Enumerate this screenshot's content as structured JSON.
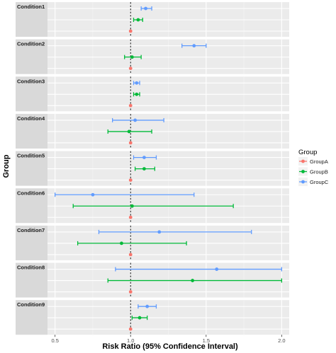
{
  "chart_data": {
    "type": "forest",
    "xlabel": "Risk Ratio (95% Confidence Interval)",
    "ylabel": "Group",
    "xlim": [
      0.45,
      2.05
    ],
    "x_ticks": [
      0.5,
      1.0,
      1.5,
      2.0
    ],
    "x_tick_labels": [
      "0.5",
      "1.0",
      "1.5",
      "2.0"
    ],
    "reference_line": 1.0,
    "grid": true,
    "legend_position": "right",
    "legend": {
      "title": "Group",
      "items": [
        {
          "name": "GroupA",
          "color": "#F8766D"
        },
        {
          "name": "GroupB",
          "color": "#00BA38"
        },
        {
          "name": "GroupC",
          "color": "#619CFF"
        }
      ]
    },
    "panels": [
      {
        "label": "Condition1",
        "groups": [
          {
            "name": "GroupC",
            "estimate": 1.1,
            "lower": 1.07,
            "upper": 1.14
          },
          {
            "name": "GroupB",
            "estimate": 1.05,
            "lower": 1.02,
            "upper": 1.08
          },
          {
            "name": "GroupA",
            "estimate": 1.0,
            "lower": 1.0,
            "upper": 1.0
          }
        ]
      },
      {
        "label": "Condition2",
        "groups": [
          {
            "name": "GroupC",
            "estimate": 1.42,
            "lower": 1.34,
            "upper": 1.5
          },
          {
            "name": "GroupB",
            "estimate": 1.01,
            "lower": 0.96,
            "upper": 1.07
          },
          {
            "name": "GroupA",
            "estimate": 1.0,
            "lower": 1.0,
            "upper": 1.0
          }
        ]
      },
      {
        "label": "Condition3",
        "groups": [
          {
            "name": "GroupC",
            "estimate": 1.04,
            "lower": 1.02,
            "upper": 1.06
          },
          {
            "name": "GroupB",
            "estimate": 1.04,
            "lower": 1.02,
            "upper": 1.06
          },
          {
            "name": "GroupA",
            "estimate": 1.0,
            "lower": 1.0,
            "upper": 1.0
          }
        ]
      },
      {
        "label": "Condition4",
        "groups": [
          {
            "name": "GroupC",
            "estimate": 1.03,
            "lower": 0.88,
            "upper": 1.22
          },
          {
            "name": "GroupB",
            "estimate": 0.99,
            "lower": 0.85,
            "upper": 1.14
          },
          {
            "name": "GroupA",
            "estimate": 1.0,
            "lower": 1.0,
            "upper": 1.0
          }
        ]
      },
      {
        "label": "Condition5",
        "groups": [
          {
            "name": "GroupC",
            "estimate": 1.09,
            "lower": 1.02,
            "upper": 1.17
          },
          {
            "name": "GroupB",
            "estimate": 1.09,
            "lower": 1.03,
            "upper": 1.16
          },
          {
            "name": "GroupA",
            "estimate": 1.0,
            "lower": 1.0,
            "upper": 1.0
          }
        ]
      },
      {
        "label": "Condition6",
        "groups": [
          {
            "name": "GroupC",
            "estimate": 0.75,
            "lower": 0.5,
            "upper": 1.42
          },
          {
            "name": "GroupB",
            "estimate": 1.01,
            "lower": 0.62,
            "upper": 1.68
          },
          {
            "name": "GroupA",
            "estimate": 1.0,
            "lower": 1.0,
            "upper": 1.0
          }
        ]
      },
      {
        "label": "Condition7",
        "groups": [
          {
            "name": "GroupC",
            "estimate": 1.19,
            "lower": 0.79,
            "upper": 1.8
          },
          {
            "name": "GroupB",
            "estimate": 0.94,
            "lower": 0.65,
            "upper": 1.37
          },
          {
            "name": "GroupA",
            "estimate": 1.0,
            "lower": 1.0,
            "upper": 1.0
          }
        ]
      },
      {
        "label": "Condition8",
        "groups": [
          {
            "name": "GroupC",
            "estimate": 1.57,
            "lower": 0.9,
            "upper": 2.0
          },
          {
            "name": "GroupB",
            "estimate": 1.41,
            "lower": 0.85,
            "upper": 2.0
          },
          {
            "name": "GroupA",
            "estimate": 1.0,
            "lower": 1.0,
            "upper": 1.0
          }
        ]
      },
      {
        "label": "Condition9",
        "groups": [
          {
            "name": "GroupC",
            "estimate": 1.11,
            "lower": 1.05,
            "upper": 1.17
          },
          {
            "name": "GroupB",
            "estimate": 1.06,
            "lower": 1.01,
            "upper": 1.11
          },
          {
            "name": "GroupA",
            "estimate": 1.0,
            "lower": 1.0,
            "upper": 1.0
          }
        ]
      }
    ]
  }
}
